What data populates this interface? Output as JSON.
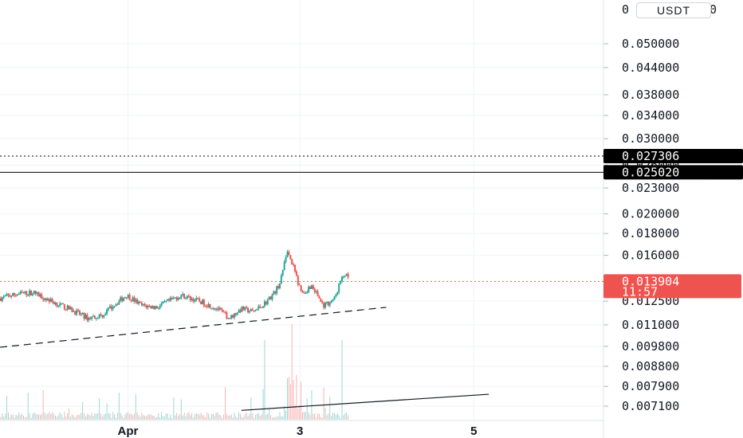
{
  "currency": {
    "label": "USDT",
    "edge_left": "0",
    "edge_right": "0"
  },
  "chart_data": {
    "type": "candlestick",
    "title": "",
    "xlabel": "",
    "ylabel": "",
    "y_ticks": [
      0.05,
      0.044,
      0.038,
      0.034,
      0.03,
      0.026,
      0.023,
      0.02,
      0.018,
      0.016,
      0.0125,
      0.011,
      0.0098,
      0.0088,
      0.0079,
      0.0071
    ],
    "y_tick_labels": [
      "0.050000",
      "0.044000",
      "0.038000",
      "0.034000",
      "0.030000",
      "0.026000",
      "0.023000",
      "0.020000",
      "0.018000",
      "0.016000",
      "0.012500",
      "0.011000",
      "0.009800",
      "0.008800",
      "0.007900",
      "0.007100"
    ],
    "y_scale": "log",
    "ylim": [
      0.0068,
      0.066
    ],
    "x_ticks": [
      "Apr",
      "3",
      "5"
    ],
    "grid": true,
    "price_lines": [
      {
        "label": "0.027306",
        "value": 0.027306,
        "style": "dotted",
        "color": "#000000"
      },
      {
        "label": "0.025020",
        "value": 0.02502,
        "style": "solid",
        "color": "#000000"
      }
    ],
    "current_price": {
      "label": "0.013904",
      "value": 0.013904,
      "countdown": "11:57",
      "color": "#ef5350"
    },
    "up_color": "#26a69a",
    "down_color": "#ef5350",
    "trend_lines": [
      {
        "style": "dashed",
        "from": [
          0.0,
          0.00975
        ],
        "to": [
          0.64,
          0.01209
        ]
      },
      {
        "style": "solid",
        "from": [
          0.4,
          0.00694
        ],
        "to": [
          0.81,
          0.00757
        ]
      }
    ],
    "series": [
      {
        "anchors": [
          [
            0.0,
            0.0127
          ],
          [
            0.03,
            0.013
          ],
          [
            0.055,
            0.0131
          ],
          [
            0.09,
            0.0124
          ],
          [
            0.12,
            0.0119
          ],
          [
            0.145,
            0.0114
          ],
          [
            0.17,
            0.0116
          ],
          [
            0.19,
            0.0123
          ],
          [
            0.21,
            0.0129
          ],
          [
            0.235,
            0.0122
          ],
          [
            0.26,
            0.0121
          ],
          [
            0.28,
            0.0125
          ],
          [
            0.3,
            0.0129
          ],
          [
            0.33,
            0.0125
          ],
          [
            0.36,
            0.012
          ],
          [
            0.38,
            0.0114
          ],
          [
            0.4,
            0.012
          ],
          [
            0.42,
            0.0118
          ],
          [
            0.44,
            0.0124
          ],
          [
            0.455,
            0.0131
          ],
          [
            0.465,
            0.0139
          ],
          [
            0.475,
            0.0164
          ],
          [
            0.485,
            0.0152
          ],
          [
            0.495,
            0.0136
          ],
          [
            0.505,
            0.0131
          ],
          [
            0.515,
            0.0136
          ],
          [
            0.525,
            0.013
          ],
          [
            0.535,
            0.0122
          ],
          [
            0.545,
            0.0124
          ],
          [
            0.555,
            0.0127
          ],
          [
            0.563,
            0.0138
          ],
          [
            0.572,
            0.0145
          ],
          [
            0.578,
            0.0139
          ]
        ]
      }
    ]
  }
}
